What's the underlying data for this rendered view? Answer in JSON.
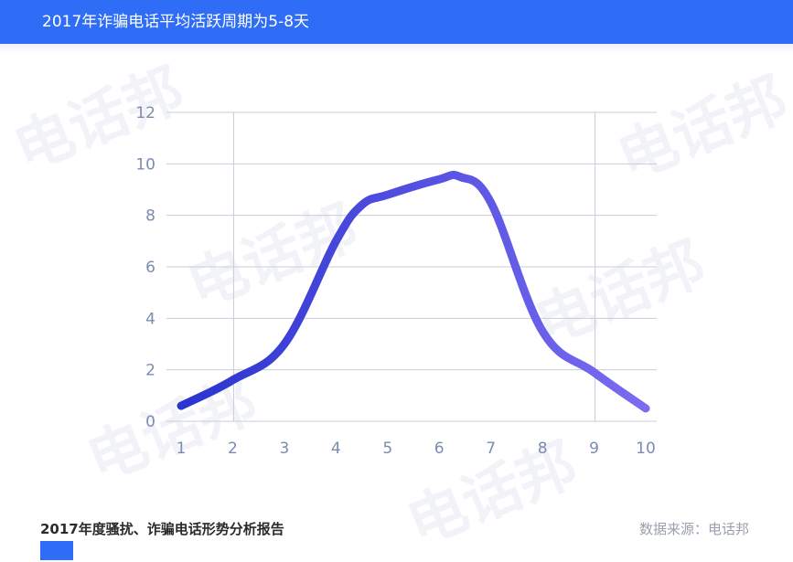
{
  "header": {
    "title": "2017年诈骗电话平均活跃周期为5-8天"
  },
  "watermark": {
    "text": "电话邦"
  },
  "footer": {
    "report_title": "2017年度骚扰、诈骗电话形势分析报告",
    "source": "数据来源：电话邦"
  },
  "colors": {
    "brand": "#2f6df6",
    "line_start": "#2b34d0",
    "line_end": "#7b6cf0",
    "grid": "#c9ccd8"
  },
  "chart_data": {
    "type": "line",
    "title": "",
    "xlabel": "",
    "ylabel": "",
    "x": [
      1,
      2,
      3,
      4,
      4.5,
      5,
      6,
      6.4,
      7,
      8,
      9,
      10
    ],
    "y": [
      0.6,
      1.6,
      3.0,
      7.0,
      8.4,
      8.8,
      9.4,
      9.5,
      8.5,
      3.5,
      1.9,
      0.5
    ],
    "xticks": [
      "1",
      "2",
      "3",
      "4",
      "5",
      "6",
      "7",
      "8",
      "9",
      "10"
    ],
    "yticks": [
      "0",
      "2",
      "4",
      "6",
      "8",
      "10",
      "12"
    ],
    "xlim": [
      1,
      10
    ],
    "ylim": [
      0,
      12
    ],
    "grid": "horizontal",
    "highlight_x": [
      2,
      9
    ],
    "legend": "none"
  }
}
